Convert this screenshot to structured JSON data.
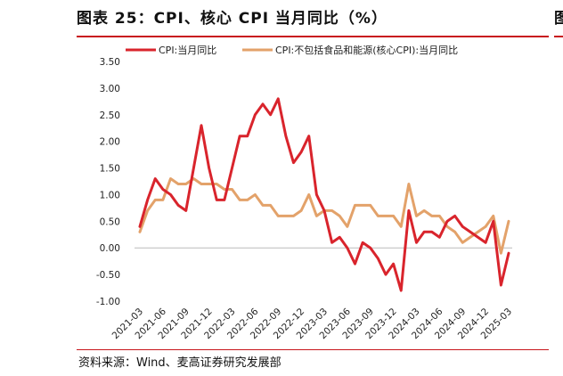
{
  "figure": {
    "title": "图表 25：CPI、核心 CPI 当月同比（%）",
    "source": "资料来源：Wind、麦高证券研究发展部",
    "right_stub": "图"
  },
  "colors": {
    "cpi": "#d9242c",
    "core_cpi": "#e3a26a",
    "rule": "#c8161d"
  },
  "chart_data": {
    "type": "line",
    "title": "CPI、核心 CPI 当月同比（%）",
    "xlabel": "",
    "ylabel": "",
    "ylim": [
      -1.0,
      3.5
    ],
    "yticks": [
      "3.50",
      "3.00",
      "2.50",
      "2.00",
      "1.50",
      "1.00",
      "0.50",
      "0.00",
      "-0.50",
      "-1.00"
    ],
    "ytick_values": [
      3.5,
      3.0,
      2.5,
      2.0,
      1.5,
      1.0,
      0.5,
      0.0,
      -0.5,
      -1.0
    ],
    "grid": false,
    "legend_position": "top",
    "x": [
      "2021-03",
      "2021-04",
      "2021-05",
      "2021-06",
      "2021-07",
      "2021-08",
      "2021-09",
      "2021-10",
      "2021-11",
      "2021-12",
      "2022-01",
      "2022-02",
      "2022-03",
      "2022-04",
      "2022-05",
      "2022-06",
      "2022-07",
      "2022-08",
      "2022-09",
      "2022-10",
      "2022-11",
      "2022-12",
      "2023-01",
      "2023-02",
      "2023-03",
      "2023-04",
      "2023-05",
      "2023-06",
      "2023-07",
      "2023-08",
      "2023-09",
      "2023-10",
      "2023-11",
      "2023-12",
      "2024-01",
      "2024-02",
      "2024-03",
      "2024-04",
      "2024-05",
      "2024-06",
      "2024-07",
      "2024-08",
      "2024-09",
      "2024-10",
      "2024-11",
      "2024-12",
      "2025-01",
      "2025-02",
      "2025-03"
    ],
    "xtick_labels": [
      "2021-03",
      "2021-06",
      "2021-09",
      "2021-12",
      "2022-03",
      "2022-06",
      "2022-09",
      "2022-12",
      "2023-03",
      "2023-06",
      "2023-09",
      "2023-12",
      "2024-03",
      "2024-06",
      "2024-09",
      "2024-12",
      "2025-03"
    ],
    "series": [
      {
        "name": "CPI:当月同比",
        "color": "#d9242c",
        "values": [
          0.4,
          0.9,
          1.3,
          1.1,
          1.0,
          0.8,
          0.7,
          1.5,
          2.3,
          1.5,
          0.9,
          0.9,
          1.5,
          2.1,
          2.1,
          2.5,
          2.7,
          2.5,
          2.8,
          2.1,
          1.6,
          1.8,
          2.1,
          1.0,
          0.7,
          0.1,
          0.2,
          0.0,
          -0.3,
          0.1,
          0.0,
          -0.2,
          -0.5,
          -0.3,
          -0.8,
          0.7,
          0.1,
          0.3,
          0.3,
          0.2,
          0.5,
          0.6,
          0.4,
          0.3,
          0.2,
          0.1,
          0.5,
          -0.7,
          -0.1
        ]
      },
      {
        "name": "CPI:不包括食品和能源(核心CPI):当月同比",
        "color": "#e3a26a",
        "values": [
          0.3,
          0.7,
          0.9,
          0.9,
          1.3,
          1.2,
          1.2,
          1.3,
          1.2,
          1.2,
          1.2,
          1.1,
          1.1,
          0.9,
          0.9,
          1.0,
          0.8,
          0.8,
          0.6,
          0.6,
          0.6,
          0.7,
          1.0,
          0.6,
          0.7,
          0.7,
          0.6,
          0.4,
          0.8,
          0.8,
          0.8,
          0.6,
          0.6,
          0.6,
          0.4,
          1.2,
          0.6,
          0.7,
          0.6,
          0.6,
          0.4,
          0.3,
          0.1,
          0.2,
          0.3,
          0.4,
          0.6,
          -0.1,
          0.5
        ]
      }
    ]
  }
}
